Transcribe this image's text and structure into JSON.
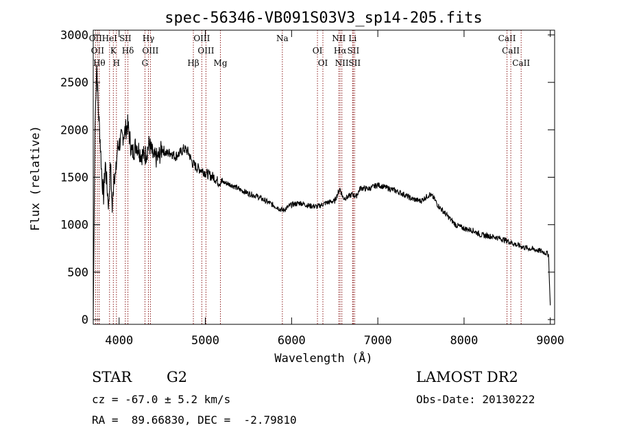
{
  "chart_data": {
    "type": "line",
    "title": "spec-56346-VB091S03V3_sp14-205.fits",
    "xlabel": "Wavelength (Å)",
    "ylabel": "Flux (relative)",
    "xlim": [
      3700,
      9050
    ],
    "ylim": [
      -50,
      3050
    ],
    "xticks": [
      4000,
      5000,
      6000,
      7000,
      8000,
      9000
    ],
    "yticks": [
      0,
      500,
      1000,
      1500,
      2000,
      2500,
      3000
    ],
    "grid": false,
    "series": [
      {
        "x": [
          3700,
          3720,
          3740,
          3760,
          3780,
          3800,
          3820,
          3840,
          3860,
          3880,
          3900,
          3920,
          3940,
          3960,
          3980,
          4000,
          4050,
          4100,
          4150,
          4200,
          4250,
          4300,
          4350,
          4400,
          4450,
          4500,
          4550,
          4600,
          4650,
          4700,
          4750,
          4800,
          4850,
          4900,
          4950,
          5000,
          5050,
          5100,
          5150,
          5200,
          5300,
          5400,
          5500,
          5600,
          5700,
          5800,
          5900,
          6000,
          6100,
          6200,
          6300,
          6400,
          6500,
          6560,
          6600,
          6650,
          6700,
          6750,
          6800,
          6850,
          6900,
          6950,
          7000,
          7100,
          7200,
          7300,
          7400,
          7500,
          7600,
          7650,
          7700,
          7800,
          7900,
          8000,
          8100,
          8200,
          8300,
          8400,
          8500,
          8600,
          8700,
          8800,
          8900,
          8980,
          8990,
          9000
        ],
        "y": [
          0,
          2000,
          2700,
          2200,
          1900,
          1500,
          1300,
          1650,
          1400,
          1200,
          1650,
          1150,
          1550,
          1500,
          1800,
          1850,
          1950,
          2050,
          1750,
          1850,
          1750,
          1720,
          1850,
          1700,
          1700,
          1800,
          1750,
          1760,
          1720,
          1750,
          1800,
          1770,
          1650,
          1600,
          1580,
          1550,
          1520,
          1500,
          1450,
          1450,
          1420,
          1370,
          1330,
          1300,
          1250,
          1200,
          1150,
          1210,
          1230,
          1200,
          1190,
          1230,
          1250,
          1380,
          1280,
          1290,
          1320,
          1300,
          1390,
          1380,
          1380,
          1400,
          1420,
          1390,
          1360,
          1320,
          1270,
          1250,
          1320,
          1280,
          1200,
          1100,
          1000,
          960,
          940,
          890,
          880,
          860,
          830,
          790,
          760,
          740,
          720,
          690,
          380,
          150
        ]
      }
    ],
    "line_markers": [
      {
        "wl": 3727,
        "labels": [
          "OII"
        ]
      },
      {
        "wl": 3750,
        "labels": [
          "OII"
        ]
      },
      {
        "wl": 3770,
        "labels": [
          "Hθ"
        ]
      },
      {
        "wl": 3889,
        "labels": [
          "HeI"
        ]
      },
      {
        "wl": 3933,
        "labels": [
          "K"
        ]
      },
      {
        "wl": 3969,
        "labels": [
          "H"
        ]
      },
      {
        "wl": 4072,
        "labels": [
          "SII"
        ]
      },
      {
        "wl": 4102,
        "labels": [
          "Hδ"
        ]
      },
      {
        "wl": 4300,
        "labels": [
          "G"
        ]
      },
      {
        "wl": 4340,
        "labels": [
          "Hγ"
        ]
      },
      {
        "wl": 4363,
        "labels": [
          "OIII"
        ]
      },
      {
        "wl": 4861,
        "labels": [
          "Hβ"
        ]
      },
      {
        "wl": 4959,
        "labels": [
          "OIII"
        ]
      },
      {
        "wl": 5007,
        "labels": [
          "OIII"
        ]
      },
      {
        "wl": 5175,
        "labels": [
          "Mg"
        ]
      },
      {
        "wl": 5893,
        "labels": [
          "Na"
        ]
      },
      {
        "wl": 6300,
        "labels": [
          "OI"
        ]
      },
      {
        "wl": 6363,
        "labels": [
          "OI"
        ]
      },
      {
        "wl": 6548,
        "labels": [
          "NII"
        ]
      },
      {
        "wl": 6563,
        "labels": [
          "Hα"
        ]
      },
      {
        "wl": 6583,
        "labels": [
          "NII"
        ]
      },
      {
        "wl": 6707,
        "labels": [
          "Li"
        ]
      },
      {
        "wl": 6716,
        "labels": [
          "SII"
        ]
      },
      {
        "wl": 6731,
        "labels": [
          "SII"
        ]
      },
      {
        "wl": 8498,
        "labels": [
          "CaII"
        ]
      },
      {
        "wl": 8542,
        "labels": [
          "CaII"
        ]
      },
      {
        "wl": 8662,
        "labels": [
          "CaII"
        ]
      }
    ]
  },
  "info": {
    "object_class": "STAR",
    "subclass": "G2",
    "redshift": "cz = -67.0 ± 5.2 km/s",
    "coords": "RA =  89.66830, DEC =  -2.79810",
    "survey": "LAMOST DR2",
    "obs_date": "Obs-Date: 20130222"
  }
}
